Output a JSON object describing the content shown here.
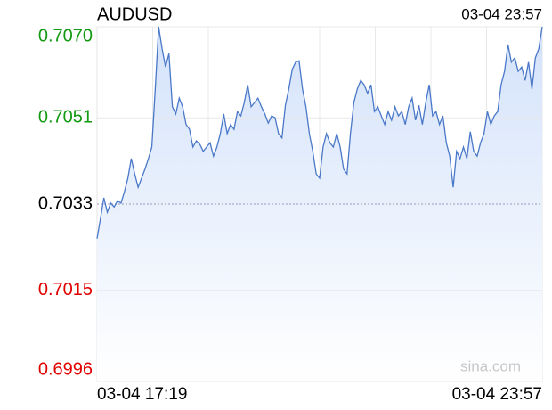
{
  "chart_data": {
    "type": "line",
    "title": "AUDUSD",
    "timestamp": "03-04 23:57",
    "watermark": "sina.com",
    "categories": [
      "03-04 17:19",
      null,
      null,
      null,
      null,
      null,
      null,
      null,
      null,
      null,
      null,
      null,
      null,
      null,
      null,
      null,
      null,
      null,
      null,
      null,
      null,
      null,
      null,
      null,
      null,
      null,
      null,
      null,
      null,
      null,
      null,
      null,
      null,
      null,
      null,
      null,
      null,
      null,
      null,
      null,
      null,
      null,
      null,
      null,
      null,
      null,
      null,
      null,
      null,
      null,
      null,
      null,
      null,
      null,
      null,
      null,
      null,
      null,
      null,
      null,
      null,
      null,
      null,
      null,
      null,
      null,
      null,
      null,
      null,
      null,
      null,
      null,
      null,
      null,
      null,
      null,
      null,
      null,
      null,
      null,
      null,
      null,
      null,
      null,
      null,
      null,
      null,
      null,
      null,
      null,
      null,
      null,
      null,
      null,
      null,
      null,
      null,
      null,
      null,
      null,
      null,
      null,
      null,
      null,
      null,
      null,
      null,
      null,
      null,
      null,
      null,
      null,
      null,
      null,
      null,
      null,
      null,
      null,
      null,
      null,
      null,
      null,
      null,
      null,
      null,
      null,
      null,
      null,
      null,
      null,
      "03-04 23:57"
    ],
    "values": [
      0.70258,
      0.703,
      0.70343,
      0.70313,
      0.70332,
      0.70324,
      0.70337,
      0.70332,
      0.70356,
      0.70384,
      0.70425,
      0.70393,
      0.70365,
      0.70384,
      0.70403,
      0.70425,
      0.70449,
      0.7057,
      0.707,
      0.70654,
      0.70616,
      0.70644,
      0.70533,
      0.70518,
      0.70551,
      0.70533,
      0.70496,
      0.70486,
      0.70449,
      0.70462,
      0.70455,
      0.7044,
      0.70449,
      0.70458,
      0.7043,
      0.70449,
      0.70477,
      0.70518,
      0.70477,
      0.70496,
      0.70486,
      0.70523,
      0.70514,
      0.70542,
      0.70579,
      0.70533,
      0.70542,
      0.70551,
      0.70533,
      0.70518,
      0.70499,
      0.70514,
      0.7051,
      0.70477,
      0.70468,
      0.70536,
      0.7057,
      0.70611,
      0.70626,
      0.70629,
      0.7057,
      0.70533,
      0.70477,
      0.7044,
      0.70393,
      0.70384,
      0.70449,
      0.70477,
      0.70458,
      0.70449,
      0.70477,
      0.70449,
      0.70403,
      0.70393,
      0.70477,
      0.70542,
      0.7057,
      0.70588,
      0.70579,
      0.70561,
      0.70579,
      0.70523,
      0.70533,
      0.70514,
      0.70496,
      0.70523,
      0.70505,
      0.70533,
      0.70514,
      0.70523,
      0.70496,
      0.70533,
      0.70551,
      0.70505,
      0.70536,
      0.70496,
      0.70542,
      0.70579,
      0.70514,
      0.70523,
      0.70496,
      0.70514,
      0.70458,
      0.7043,
      0.70365,
      0.7044,
      0.70425,
      0.70449,
      0.70425,
      0.70481,
      0.7044,
      0.7043,
      0.70458,
      0.70477,
      0.70523,
      0.70496,
      0.70514,
      0.70523,
      0.70579,
      0.70607,
      0.70663,
      0.70626,
      0.70635,
      0.70607,
      0.70616,
      0.70588,
      0.70626,
      0.7057,
      0.70635,
      0.70654,
      0.707
    ],
    "color": "#4a78c8",
    "ylim": [
      0.6996,
      0.707
    ],
    "yticks": [
      {
        "value": 0.707,
        "label": "0.7070"
      },
      0.7051,
      0.7033,
      0.7015,
      0.6996
    ],
    "reference_line": 0.7033,
    "grid": true
  }
}
